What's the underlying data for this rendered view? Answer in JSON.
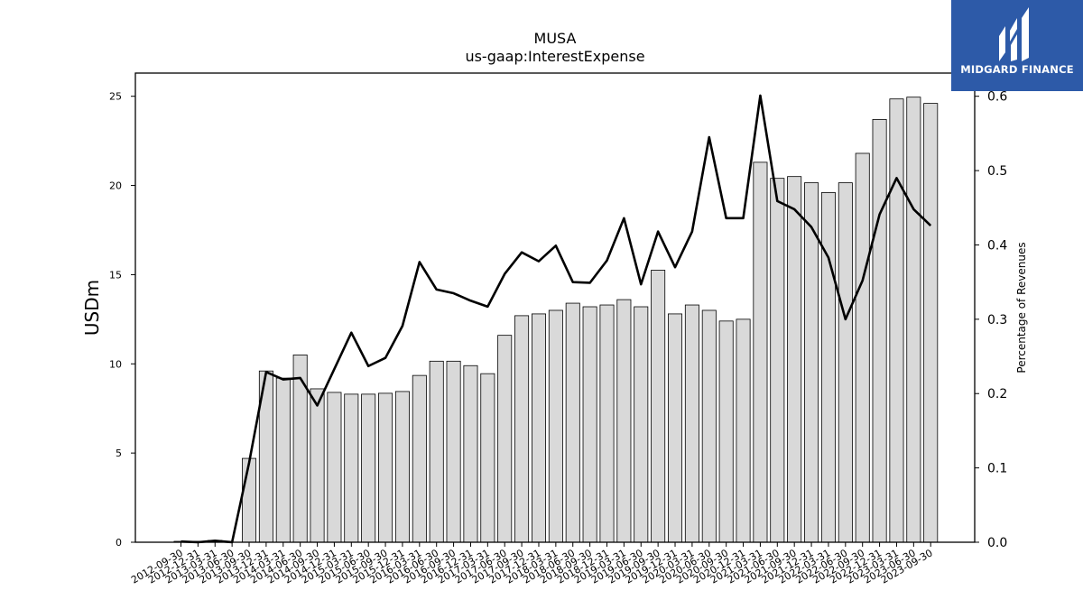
{
  "chart_data": {
    "type": "bar",
    "title": "MUSA",
    "subtitle": "us-gaap:InterestExpense",
    "ylabel": "USDm",
    "y2label": "Percentage of Revenues",
    "ylim": [
      0,
      26.3
    ],
    "y2lim": [
      0,
      0.6312
    ],
    "yticks": [
      0,
      5,
      10,
      15,
      20,
      25
    ],
    "y2ticks": [
      0.0,
      0.1,
      0.2,
      0.3,
      0.4,
      0.5,
      0.6
    ],
    "y2tick_labels": [
      "0.0",
      "0.1",
      "0.2",
      "0.3",
      "0.4",
      "0.5",
      "0.6"
    ],
    "grid": false,
    "categories": [
      "2012-09-30",
      "2012-12-31",
      "2013-03-31",
      "2013-06-30",
      "2013-09-30",
      "2013-12-31",
      "2014-03-31",
      "2014-06-30",
      "2014-09-30",
      "2014-12-31",
      "2015-03-31",
      "2015-06-30",
      "2015-09-30",
      "2015-12-31",
      "2016-03-31",
      "2016-06-30",
      "2016-09-30",
      "2016-12-31",
      "2017-03-31",
      "2017-06-30",
      "2017-09-30",
      "2017-12-31",
      "2018-03-31",
      "2018-06-30",
      "2018-09-30",
      "2018-12-31",
      "2019-03-31",
      "2019-06-30",
      "2019-09-30",
      "2019-12-31",
      "2020-03-31",
      "2020-06-30",
      "2020-09-30",
      "2020-12-31",
      "2021-03-31",
      "2021-06-30",
      "2021-09-30",
      "2021-12-31",
      "2022-03-31",
      "2022-06-30",
      "2022-09-30",
      "2022-12-31",
      "2023-03-31",
      "2023-06-30",
      "2023-09-30"
    ],
    "series": [
      {
        "name": "InterestExpense",
        "kind": "bar",
        "axis": "left",
        "values": [
          0.05,
          0.05,
          0.1,
          0.0,
          4.7,
          9.6,
          9.2,
          10.5,
          8.6,
          8.4,
          8.3,
          8.3,
          8.35,
          8.45,
          9.35,
          10.15,
          10.15,
          9.9,
          9.45,
          11.6,
          12.7,
          12.8,
          13.0,
          13.4,
          13.2,
          13.3,
          13.6,
          13.2,
          15.25,
          12.8,
          13.3,
          13.0,
          12.4,
          12.5,
          21.3,
          20.4,
          20.5,
          20.15,
          19.6,
          20.15,
          21.8,
          23.7,
          24.85,
          24.95,
          24.6
        ]
      },
      {
        "name": "Percentage of Revenues",
        "kind": "line",
        "axis": "right",
        "values": [
          0.001,
          0.0,
          0.002,
          0.0,
          0.107,
          0.229,
          0.219,
          0.221,
          0.184,
          0.233,
          0.282,
          0.237,
          0.248,
          0.291,
          0.377,
          0.34,
          0.335,
          0.325,
          0.317,
          0.361,
          0.39,
          0.378,
          0.399,
          0.35,
          0.349,
          0.379,
          0.436,
          0.347,
          0.418,
          0.37,
          0.418,
          0.545,
          0.436,
          0.436,
          0.601,
          0.459,
          0.448,
          0.424,
          0.383,
          0.3,
          0.352,
          0.441,
          0.49,
          0.448,
          0.426
        ]
      }
    ]
  },
  "logo": {
    "text": "MIDGARD FINANCE",
    "background": "#2d5aa8",
    "text_color": "#ffffff"
  },
  "colors": {
    "bar_fill": "#d9d9d9",
    "bar_edge": "#000000",
    "line": "#000000"
  }
}
